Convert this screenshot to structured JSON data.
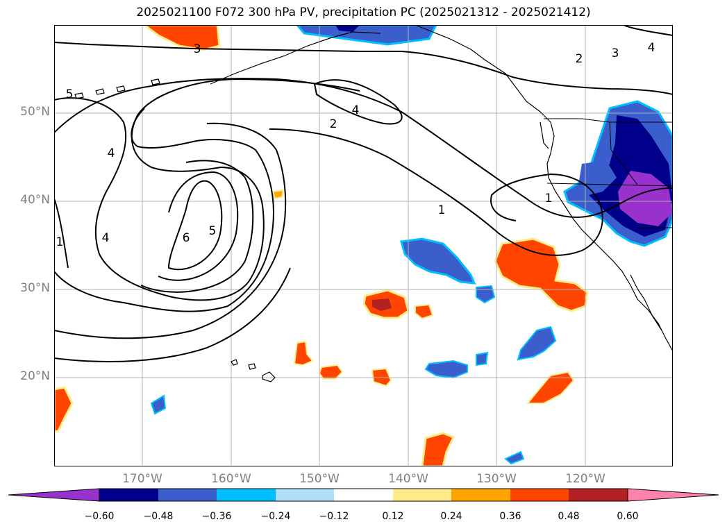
{
  "title": "2025021100 F072 300 hPa PV, precipitation PC (2025021312 - 2025021412)",
  "map": {
    "lat_labels": [
      "50°N",
      "40°N",
      "30°N",
      "20°N"
    ],
    "lon_labels": [
      "170°W",
      "160°W",
      "150°W",
      "140°W",
      "130°W",
      "120°W"
    ],
    "contour_labels": [
      "3",
      "5",
      "4",
      "1",
      "4",
      "6",
      "5",
      "4",
      "2",
      "1",
      "2",
      "3",
      "4",
      "1"
    ],
    "colors": {
      "contour": "#000000",
      "coastline": "#000000",
      "grid": "#b0b0b0",
      "ocean": "#ffffff"
    }
  },
  "colorbar": {
    "ticks": [
      "−0.60",
      "−0.48",
      "−0.36",
      "−0.24",
      "−0.12",
      "0.12",
      "0.24",
      "0.36",
      "0.48",
      "0.60"
    ],
    "colors": [
      "#9932cc",
      "#00008b",
      "#3a5fcd",
      "#00bfff",
      "#afe0fa",
      "#ffffff",
      "#ffec8b",
      "#ffa500",
      "#ff4500",
      "#b22222",
      "#ff82ab"
    ]
  }
}
